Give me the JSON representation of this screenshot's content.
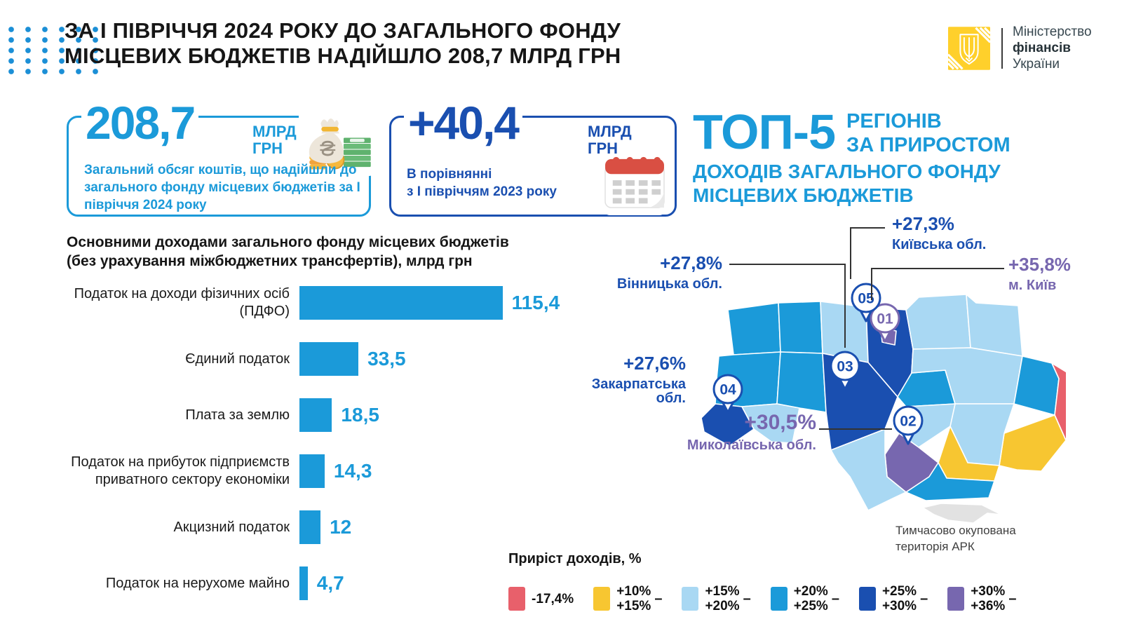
{
  "palette": {
    "mid": "#1B9AD9",
    "light": "#A9D8F3",
    "dark": "#1A4FB0",
    "purple": "#7767AF",
    "yellow": "#F7C631",
    "red": "#E8606B",
    "gray": "#E2E2E2",
    "ink": "#161616",
    "note": "#3F3F3F",
    "line": "#333333",
    "dots": "#1B8FD6",
    "logo_yellow": "#FFD02B"
  },
  "header": {
    "title_line1": "ЗА І ПІВРІЧЧЯ 2024 РОКУ ДО ЗАГАЛЬНОГО ФОНДУ",
    "title_line2": "МІСЦЕВИХ БЮДЖЕТІВ НАДІЙШЛО 208,7 МЛРД ГРН",
    "logo": {
      "line1": "Міністерство",
      "line2": "фінансів",
      "line3": "України"
    }
  },
  "stat_boxes": [
    {
      "value": "208,7",
      "unit_line1": "МЛРД",
      "unit_line2": "ГРН",
      "description": "Загальний обсяг коштів, що надійшли до загального фонду місцевих бюджетів за І півріччя 2024 року",
      "icon": "money-bag-icon"
    },
    {
      "value": "+40,4",
      "unit_line1": "МЛРД",
      "unit_line2": "ГРН",
      "description_line1": "В порівнянні",
      "description_line2": "з І півріччям 2023 року",
      "icon": "calendar-icon"
    }
  ],
  "chart_data": [
    {
      "type": "bar",
      "title_line1": "Основними доходами загального фонду місцевих бюджетів",
      "title_line2": "(без урахування міжбюджетних трансфертів), млрд грн",
      "categories": [
        "Податок на доходи фізичних осіб (ПДФО)",
        "Єдиний податок",
        "Плата за землю",
        "Податок на прибуток підприємств приватного сектору економіки",
        "Акцизний податок",
        "Податок на нерухоме майно"
      ],
      "values": [
        115.4,
        33.5,
        18.5,
        14.3,
        12,
        4.7
      ],
      "value_labels": [
        "115,4",
        "33,5",
        "18,5",
        "14,3",
        "12",
        "4,7"
      ],
      "xlim": [
        0,
        120
      ],
      "bar_color": "#1B9AD9",
      "orientation": "horizontal"
    },
    {
      "type": "choropleth",
      "title": "ТОП-5 регіонів за приростом доходів загального фонду місцевих бюджетів",
      "legend_title": "Приріст доходів, %",
      "legend_ranges": [
        "-17,4%",
        "+10% – +15%",
        "+15% – +20%",
        "+20% – +25%",
        "+25% – +30%",
        "+30% – +36%"
      ],
      "top5": [
        {
          "rank": "01",
          "region": "м. Київ",
          "value": "+35,8%"
        },
        {
          "rank": "02",
          "region": "Миколаївська обл.",
          "value": "+30,5%"
        },
        {
          "rank": "03",
          "region": "Вінницька обл.",
          "value": "+27,8%"
        },
        {
          "rank": "04",
          "region": "Закарпатська обл.",
          "value": "+27,6%"
        },
        {
          "rank": "05",
          "region": "Київська обл.",
          "value": "+27,3%"
        }
      ],
      "note": "Тимчасово окупована територія АРК"
    }
  ],
  "map": {
    "heading": {
      "big": "ТОП-5",
      "side1": "РЕГІОНІВ",
      "side2": "ЗА ПРИРОСТОМ",
      "sub1": "ДОХОДІВ ЗАГАЛЬНОГО ФОНДУ",
      "sub2": "МІСЦЕВИХ БЮДЖЕТІВ"
    },
    "callouts": [
      {
        "pct": "+27,3%",
        "region": "Київська обл.",
        "color": "dark"
      },
      {
        "pct": "+35,8%",
        "region": "м. Київ",
        "color": "purple"
      },
      {
        "pct": "+27,8%",
        "region": "Вінницька обл.",
        "color": "dark"
      },
      {
        "pct": "+27,6%",
        "region": "Закарпатська обл.",
        "color": "dark"
      },
      {
        "pct": "+30,5%",
        "region": "Миколаївська обл.",
        "color": "purple"
      }
    ],
    "markers": [
      {
        "num": "01",
        "x": 282,
        "y": 74,
        "color": "purple"
      },
      {
        "num": "02",
        "x": 315,
        "y": 220,
        "color": "dark"
      },
      {
        "num": "03",
        "x": 225,
        "y": 142,
        "color": "dark"
      },
      {
        "num": "04",
        "x": 58,
        "y": 175,
        "color": "dark"
      },
      {
        "num": "05",
        "x": 255,
        "y": 45,
        "color": "dark"
      }
    ],
    "crimea_note_line1": "Тимчасово окупована",
    "crimea_note_line2": "територія АРК"
  },
  "legend": {
    "title": "Приріст доходів, %",
    "range_dash": "–",
    "items": [
      {
        "color": "red",
        "lines": [
          "-17,4%"
        ]
      },
      {
        "color": "yellow",
        "lines": [
          "+10%",
          "+15%"
        ],
        "range": true
      },
      {
        "color": "light",
        "lines": [
          "+15%",
          "+20%"
        ],
        "range": true
      },
      {
        "color": "mid",
        "lines": [
          "+20%",
          "+25%"
        ],
        "range": true
      },
      {
        "color": "dark",
        "lines": [
          "+25%",
          "+30%"
        ],
        "range": true
      },
      {
        "color": "purple",
        "lines": [
          "+30%",
          "+36%"
        ],
        "range": true
      }
    ]
  }
}
